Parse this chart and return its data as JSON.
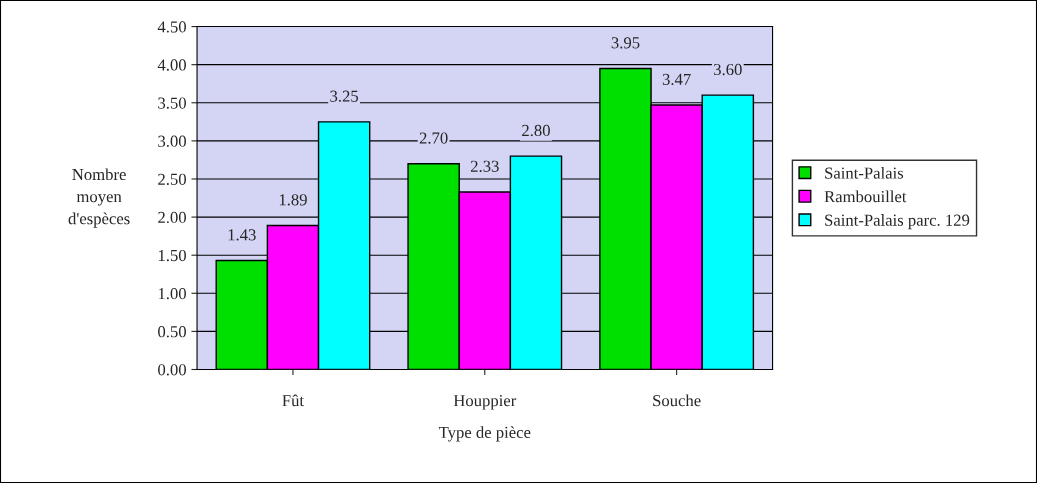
{
  "chart_data": {
    "type": "bar",
    "xlabel": "Type de pièce",
    "ylabel": "Nombre\nmoyen\nd'espèces",
    "categories": [
      "Fût",
      "Houppier",
      "Souche"
    ],
    "series": [
      {
        "name": "Saint-Palais",
        "color": "#00e000",
        "values": [
          1.43,
          2.7,
          3.95
        ],
        "value_labels": [
          "1.43",
          "2.70",
          "3.95"
        ]
      },
      {
        "name": "Rambouillet",
        "color": "#ff00ff",
        "values": [
          1.89,
          2.33,
          3.47
        ],
        "value_labels": [
          "1.89",
          "2.33",
          "3.47"
        ]
      },
      {
        "name": "Saint-Palais parc. 129",
        "color": "#00ffff",
        "values": [
          3.25,
          2.8,
          3.6
        ],
        "value_labels": [
          "3.25",
          "2.80",
          "3.60"
        ]
      }
    ],
    "ylim": [
      0,
      4.5
    ],
    "yticks": [
      {
        "value": 0,
        "label": "0.00"
      },
      {
        "value": 0.5,
        "label": "0.50"
      },
      {
        "value": 1,
        "label": "1.00"
      },
      {
        "value": 1.5,
        "label": "1.50"
      },
      {
        "value": 2,
        "label": "2.00"
      },
      {
        "value": 2.5,
        "label": "2.50"
      },
      {
        "value": 3,
        "label": "3.00"
      },
      {
        "value": 3.5,
        "label": "3.50"
      },
      {
        "value": 4,
        "label": "4.00"
      },
      {
        "value": 4.5,
        "label": "4.50"
      }
    ],
    "grid": "y",
    "legend": "right"
  }
}
